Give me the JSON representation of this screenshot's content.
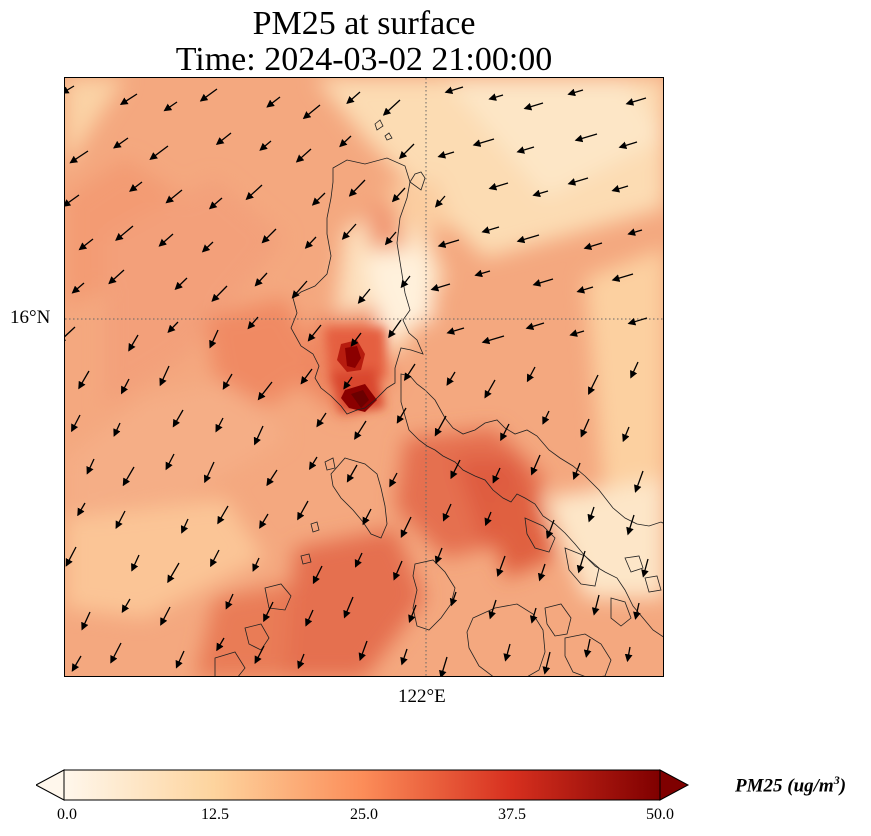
{
  "title": {
    "line1": "PM25 at surface",
    "line2": "Time: 2024-03-02 21:00:00"
  },
  "map": {
    "lat_label": "16°N",
    "lon_label": "122°E",
    "gridline_lat": "16°N",
    "gridline_lon": "122°E",
    "field": "PM25",
    "wind_vectors": "shown",
    "coastlines": "shown"
  },
  "colorbar": {
    "label_text": "PM25 (ug/m",
    "label_sup": "3",
    "label_close": ")",
    "min": 0.0,
    "max": 50.0,
    "extend": "both",
    "ticks": [
      "0.0",
      "12.5",
      "25.0",
      "37.5",
      "50.0"
    ],
    "colors": [
      "#fff7ec",
      "#fdd49e",
      "#fc8d59",
      "#d7301f",
      "#7f0000"
    ]
  },
  "chart_data": {
    "type": "heatmap",
    "title": "PM25 at surface\nTime: 2024-03-02 21:00:00",
    "variable": "PM25",
    "units": "ug/m^3",
    "colorbar_range": [
      0.0,
      50.0
    ],
    "colorbar_ticks": [
      0.0,
      12.5,
      25.0,
      37.5,
      50.0
    ],
    "gridlines": [
      "16°N",
      "122°E"
    ],
    "hotspots": [
      {
        "description": "maximum over central Luzon",
        "approx_value": 50
      },
      {
        "description": "elevated over southern Luzon / Bicol",
        "approx_value": 30
      },
      {
        "description": "elevated southwest of map",
        "approx_value": 30
      }
    ],
    "background_range": [
      8,
      22
    ]
  }
}
